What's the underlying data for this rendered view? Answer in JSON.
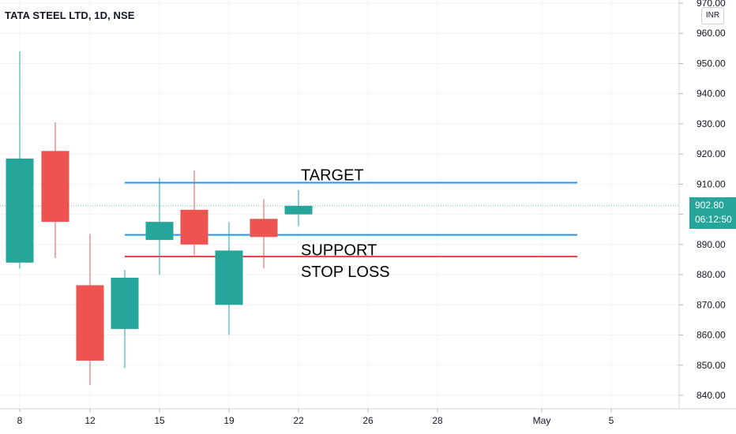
{
  "chart_title": "TATA STEEL LTD, 1D, NSE",
  "currency": "INR",
  "last_price": "902.80",
  "countdown": "06:12:50",
  "colors": {
    "up": "#26a69a",
    "down": "#ef5350",
    "target": "#2196f3",
    "support": "#2196f3",
    "stop_loss": "#f23645"
  },
  "chart_data": {
    "type": "candlestick",
    "title": "TATA STEEL LTD, 1D, NSE",
    "ylim": [
      838,
      972
    ],
    "y_ticks": [
      "840.00",
      "850.00",
      "860.00",
      "870.00",
      "880.00",
      "890.00",
      "900.00",
      "910.00",
      "920.00",
      "930.00",
      "940.00",
      "950.00",
      "960.00",
      "970.00"
    ],
    "x_ticks": [
      "8",
      "12",
      "15",
      "19",
      "22",
      "26",
      "28",
      "May",
      "5"
    ],
    "candles": [
      {
        "date": "Apr 8",
        "open": 884,
        "high": 954,
        "low": 882,
        "close": 918.5
      },
      {
        "date": "Apr 9",
        "open": 921,
        "high": 930.5,
        "low": 885.5,
        "close": 897.5
      },
      {
        "date": "Apr 12",
        "open": 876.5,
        "high": 893.5,
        "low": 843.5,
        "close": 851.5
      },
      {
        "date": "Apr 13",
        "open": 862,
        "high": 881.5,
        "low": 849,
        "close": 879
      },
      {
        "date": "Apr 15",
        "open": 891.5,
        "high": 912,
        "low": 880,
        "close": 897.5
      },
      {
        "date": "Apr 16",
        "open": 901.5,
        "high": 914.5,
        "low": 886.5,
        "close": 890
      },
      {
        "date": "Apr 19",
        "open": 870,
        "high": 897.5,
        "low": 860,
        "close": 888
      },
      {
        "date": "Apr 20",
        "open": 898.5,
        "high": 905,
        "low": 882,
        "close": 892.5
      },
      {
        "date": "Apr 22",
        "open": 900,
        "high": 908,
        "low": 896,
        "close": 902.8
      }
    ],
    "levels": [
      {
        "name": "TARGET",
        "price": 910.5
      },
      {
        "name": "SUPPORT",
        "price": 893.2
      },
      {
        "name": "STOP LOSS",
        "price": 886
      }
    ],
    "last_price": 902.8
  }
}
